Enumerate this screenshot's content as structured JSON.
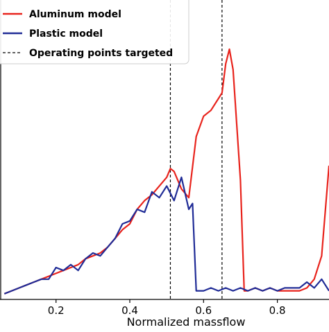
{
  "chart_data": {
    "type": "line",
    "xlabel": "Normalized massflow",
    "ylabel": "",
    "title": "",
    "xlim": [
      0.05,
      0.94
    ],
    "ylim": [
      0.0,
      1.0
    ],
    "x_ticks": [
      0.2,
      0.4,
      0.6,
      0.8
    ],
    "x_tick_labels": [
      "0.2",
      "0.4",
      "0.6",
      "0.8"
    ],
    "legend": {
      "placement": "top-left",
      "entries": [
        {
          "label": "Aluminum model",
          "color": "#e8231c",
          "style": "solid"
        },
        {
          "label": "Plastic model",
          "color": "#1f2b96",
          "style": "solid"
        },
        {
          "label": "Operating points targeted",
          "color": "#000000",
          "style": "dashed"
        }
      ]
    },
    "vlines": [
      0.51,
      0.65
    ],
    "series": [
      {
        "name": "Aluminum model",
        "color": "#e8231c",
        "x": [
          0.06,
          0.08,
          0.1,
          0.12,
          0.14,
          0.16,
          0.18,
          0.2,
          0.22,
          0.24,
          0.26,
          0.28,
          0.3,
          0.32,
          0.34,
          0.36,
          0.38,
          0.4,
          0.42,
          0.44,
          0.46,
          0.48,
          0.5,
          0.51,
          0.52,
          0.54,
          0.56,
          0.58,
          0.6,
          0.62,
          0.64,
          0.65,
          0.66,
          0.67,
          0.68,
          0.7,
          0.71,
          0.72,
          0.74,
          0.76,
          0.78,
          0.8,
          0.82,
          0.84,
          0.86,
          0.88,
          0.9,
          0.92,
          0.94
        ],
        "y": [
          0.01,
          0.02,
          0.03,
          0.04,
          0.05,
          0.06,
          0.07,
          0.08,
          0.09,
          0.1,
          0.11,
          0.13,
          0.14,
          0.15,
          0.17,
          0.2,
          0.23,
          0.25,
          0.3,
          0.33,
          0.35,
          0.38,
          0.41,
          0.44,
          0.43,
          0.37,
          0.34,
          0.55,
          0.62,
          0.64,
          0.68,
          0.7,
          0.8,
          0.85,
          0.78,
          0.4,
          0.02,
          0.02,
          0.03,
          0.02,
          0.03,
          0.02,
          0.02,
          0.02,
          0.02,
          0.03,
          0.06,
          0.14,
          0.45
        ]
      },
      {
        "name": "Plastic model",
        "color": "#1f2b96",
        "x": [
          0.06,
          0.08,
          0.1,
          0.12,
          0.14,
          0.16,
          0.18,
          0.2,
          0.22,
          0.24,
          0.26,
          0.28,
          0.3,
          0.32,
          0.34,
          0.36,
          0.38,
          0.4,
          0.42,
          0.44,
          0.46,
          0.48,
          0.5,
          0.52,
          0.54,
          0.56,
          0.57,
          0.58,
          0.6,
          0.62,
          0.64,
          0.66,
          0.68,
          0.7,
          0.72,
          0.74,
          0.76,
          0.78,
          0.8,
          0.82,
          0.84,
          0.86,
          0.88,
          0.9,
          0.92,
          0.94
        ],
        "y": [
          0.01,
          0.02,
          0.03,
          0.04,
          0.05,
          0.06,
          0.06,
          0.1,
          0.09,
          0.11,
          0.09,
          0.13,
          0.15,
          0.14,
          0.17,
          0.2,
          0.25,
          0.26,
          0.3,
          0.29,
          0.36,
          0.34,
          0.38,
          0.33,
          0.41,
          0.3,
          0.32,
          0.02,
          0.02,
          0.03,
          0.02,
          0.03,
          0.02,
          0.03,
          0.02,
          0.03,
          0.02,
          0.03,
          0.02,
          0.03,
          0.03,
          0.03,
          0.05,
          0.03,
          0.06,
          0.02
        ]
      }
    ]
  }
}
